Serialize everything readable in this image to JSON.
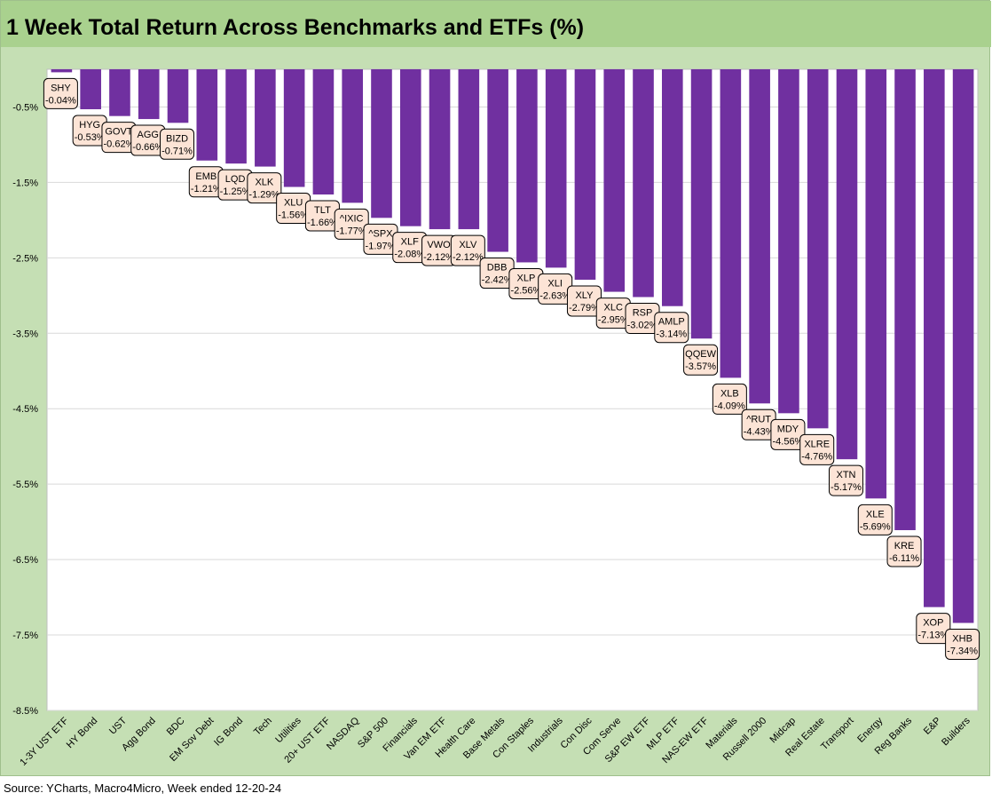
{
  "title": "1 Week Total Return Across Benchmarks and ETFs (%)",
  "source": "Source: YCharts, Macro4Micro, Week ended 12-20-24",
  "colors": {
    "bar": "#7030a0",
    "label_fill": "#fce4d6",
    "plot_bg": "#ffffff",
    "frame_bg": "#c5dfb4",
    "title_bg": "#a9d18e",
    "grid": "#d9d9d9"
  },
  "chart_data": {
    "type": "bar",
    "title": "1 Week Total Return Across Benchmarks and ETFs (%)",
    "xlabel": "",
    "ylabel": "",
    "ylim": [
      -8.5,
      0
    ],
    "yticks": [
      -0.5,
      -1.5,
      -2.5,
      -3.5,
      -4.5,
      -5.5,
      -6.5,
      -7.5,
      -8.5
    ],
    "ytick_labels": [
      "-0.5%",
      "-1.5%",
      "-2.5%",
      "-3.5%",
      "-4.5%",
      "-5.5%",
      "-6.5%",
      "-7.5%",
      "-8.5%"
    ],
    "grid": true,
    "legend": "none",
    "categories": [
      "1-3Y UST ETF",
      "HY Bond",
      "UST",
      "Agg Bond",
      "BDC",
      "EM Sov Debt",
      "IG Bond",
      "Tech",
      "Utilities",
      "20+ UST ETF",
      "NASDAQ",
      "S&P 500",
      "Financials",
      "Van EM ETF",
      "Health Care",
      "Base Metals",
      "Con Staples",
      "Industrials",
      "Con Disc",
      "Com Serve",
      "S&P EW ETF",
      "MLP ETF",
      "NAS-EW ETF",
      "Materials",
      "Russell 2000",
      "Midcap",
      "Real Estate",
      "Transport",
      "Energy",
      "Reg Banks",
      "E&P",
      "Builders"
    ],
    "tickers": [
      "SHY",
      "HYG",
      "GOVT",
      "AGG",
      "BIZD",
      "EMB",
      "LQD",
      "XLK",
      "XLU",
      "TLT",
      "^IXIC",
      "^SPX",
      "XLF",
      "VWO",
      "XLV",
      "DBB",
      "XLP",
      "XLI",
      "XLY",
      "XLC",
      "RSP",
      "AMLP",
      "QQEW",
      "XLB",
      "^RUT",
      "MDY",
      "XLRE",
      "XTN",
      "XLE",
      "KRE",
      "XOP",
      "XHB"
    ],
    "values": [
      -0.04,
      -0.53,
      -0.62,
      -0.66,
      -0.71,
      -1.21,
      -1.25,
      -1.29,
      -1.56,
      -1.66,
      -1.77,
      -1.97,
      -2.08,
      -2.12,
      -2.12,
      -2.42,
      -2.56,
      -2.63,
      -2.79,
      -2.95,
      -3.02,
      -3.14,
      -3.57,
      -4.09,
      -4.43,
      -4.56,
      -4.76,
      -5.17,
      -5.69,
      -6.11,
      -7.13,
      -7.34
    ],
    "data_labels": [
      "-0.04%",
      "-0.53%",
      "-0.62%",
      "-0.66%",
      "-0.71%",
      "-1.21%",
      "-1.25%",
      "-1.29%",
      "-1.56%",
      "-1.66%",
      "-1.77%",
      "-1.97%",
      "-2.08%",
      "-2.12%",
      "-2.12%",
      "-2.42%",
      "-2.56%",
      "-2.63%",
      "-2.79%",
      "-2.95%",
      "-3.02%",
      "-3.14%",
      "-3.57%",
      "-4.09%",
      "-4.43%",
      "-4.56%",
      "-4.76%",
      "-5.17%",
      "-5.69%",
      "-6.11%",
      "-7.13%",
      "-7.34%"
    ]
  }
}
